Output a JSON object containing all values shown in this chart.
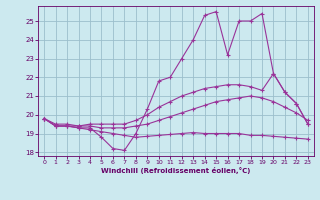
{
  "bg_color": "#cce9ef",
  "line_color": "#993399",
  "marker_color": "#993399",
  "grid_color": "#9bbfcc",
  "xlabel": "Windchill (Refroidissement éolien,°C)",
  "xlabel_color": "#660066",
  "tick_color": "#660066",
  "xlim": [
    -0.5,
    23.5
  ],
  "ylim": [
    17.8,
    25.8
  ],
  "yticks": [
    18,
    19,
    20,
    21,
    22,
    23,
    24,
    25
  ],
  "xticks": [
    0,
    1,
    2,
    3,
    4,
    5,
    6,
    7,
    8,
    9,
    10,
    11,
    12,
    13,
    14,
    15,
    16,
    17,
    18,
    19,
    20,
    21,
    22,
    23
  ],
  "series1_x": [
    0,
    1,
    2,
    3,
    4,
    5,
    6,
    7,
    8,
    9,
    10,
    11,
    12,
    13,
    14,
    15,
    16,
    17,
    18,
    19,
    20,
    21,
    22,
    23
  ],
  "series1_y": [
    19.8,
    19.4,
    19.4,
    19.3,
    19.3,
    18.8,
    18.2,
    18.1,
    19.0,
    20.3,
    21.8,
    22.0,
    23.0,
    24.0,
    25.3,
    25.5,
    23.2,
    25.0,
    25.0,
    25.4,
    22.2,
    21.2,
    20.6,
    19.5
  ],
  "series2_x": [
    0,
    1,
    2,
    3,
    4,
    5,
    6,
    7,
    8,
    9,
    10,
    11,
    12,
    13,
    14,
    15,
    16,
    17,
    18,
    19,
    20,
    21,
    22,
    23
  ],
  "series2_y": [
    19.8,
    19.5,
    19.5,
    19.4,
    19.5,
    19.5,
    19.5,
    19.5,
    19.7,
    20.0,
    20.4,
    20.7,
    21.0,
    21.2,
    21.4,
    21.5,
    21.6,
    21.6,
    21.5,
    21.3,
    22.2,
    21.2,
    20.6,
    19.5
  ],
  "series3_x": [
    0,
    1,
    2,
    3,
    4,
    5,
    6,
    7,
    8,
    9,
    10,
    11,
    12,
    13,
    14,
    15,
    16,
    17,
    18,
    19,
    20,
    21,
    22,
    23
  ],
  "series3_y": [
    19.8,
    19.4,
    19.4,
    19.4,
    19.4,
    19.3,
    19.3,
    19.3,
    19.4,
    19.5,
    19.7,
    19.9,
    20.1,
    20.3,
    20.5,
    20.7,
    20.8,
    20.9,
    21.0,
    20.9,
    20.7,
    20.4,
    20.1,
    19.7
  ],
  "series4_x": [
    0,
    1,
    2,
    3,
    4,
    5,
    6,
    7,
    8,
    9,
    10,
    11,
    12,
    13,
    14,
    15,
    16,
    17,
    18,
    19,
    20,
    21,
    22,
    23
  ],
  "series4_y": [
    19.8,
    19.4,
    19.4,
    19.3,
    19.2,
    19.1,
    19.0,
    18.9,
    18.8,
    18.85,
    18.9,
    18.95,
    19.0,
    19.05,
    19.0,
    19.0,
    19.0,
    19.0,
    18.9,
    18.9,
    18.85,
    18.8,
    18.75,
    18.7
  ]
}
